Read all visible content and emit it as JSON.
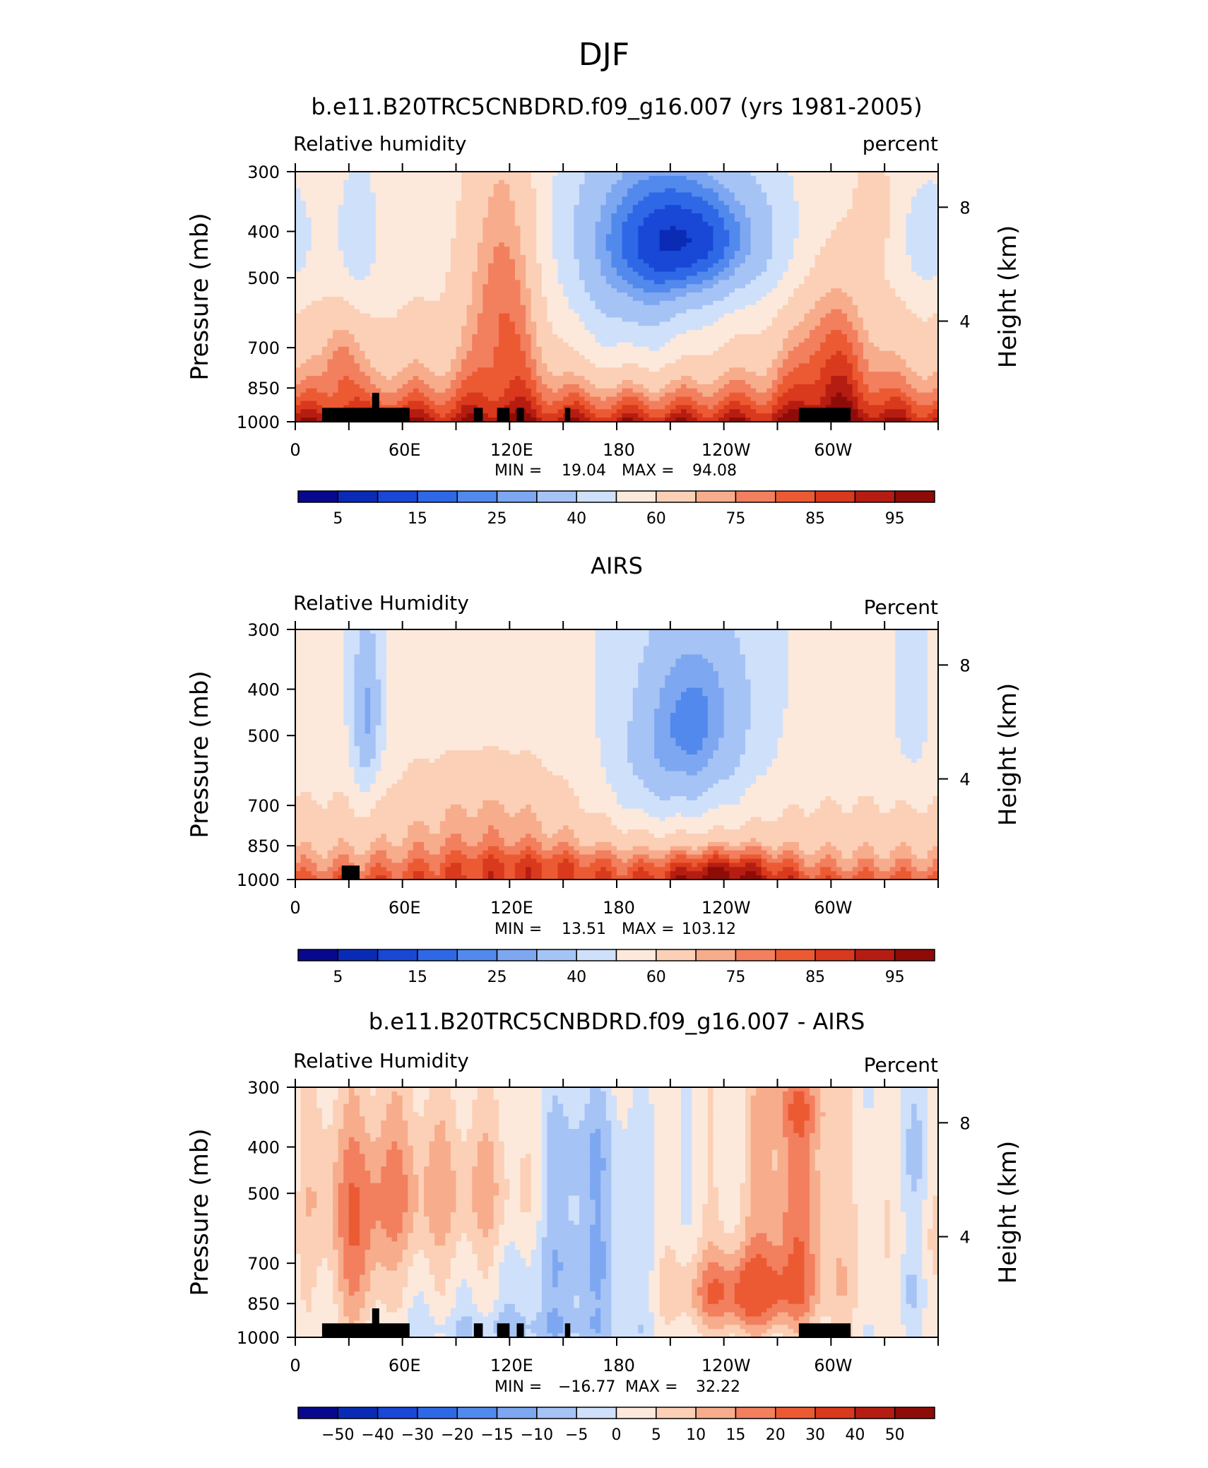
{
  "figure": {
    "title": "DJF"
  },
  "colors": {
    "rh_palette": [
      "#08088f",
      "#0a2bb5",
      "#1947d6",
      "#2e68e6",
      "#5289ec",
      "#7ea7f1",
      "#a6c3f5",
      "#cfe0fb",
      "#fce9dc",
      "#fbd0b6",
      "#f7ac8c",
      "#f27f5e",
      "#ec5a33",
      "#d9391c",
      "#b51d12",
      "#8e0c08"
    ],
    "land": "#000000"
  },
  "chart_data": [
    {
      "type": "heatmap",
      "panel_title": "b.e11.B20TRC5CNBDRD.f09_g16.007 (yrs 1981-2005)",
      "left_label": "Relative humidity",
      "right_label": "percent",
      "xlabel": "",
      "ylabel": "Pressure (mb)",
      "ylabel_right": "Height (km)",
      "x_ticks": [
        "0",
        "60E",
        "120E",
        "180",
        "120W",
        "60W"
      ],
      "y_ticks": [
        "300",
        "400",
        "500",
        "700",
        "850",
        "1000"
      ],
      "y_right_ticks": [
        "8",
        "4"
      ],
      "min_label": "MIN =",
      "min": "19.04",
      "max_label": "MAX =",
      "max": "94.08",
      "colorbar_labels": [
        "5",
        "15",
        "25",
        "40",
        "60",
        "75",
        "85",
        "95"
      ],
      "field": "model"
    },
    {
      "type": "heatmap",
      "panel_title": "AIRS",
      "left_label": "Relative Humidity",
      "right_label": "Percent",
      "xlabel": "",
      "ylabel": "Pressure (mb)",
      "ylabel_right": "Height (km)",
      "x_ticks": [
        "0",
        "60E",
        "120E",
        "180",
        "120W",
        "60W"
      ],
      "y_ticks": [
        "300",
        "400",
        "500",
        "700",
        "850",
        "1000"
      ],
      "y_right_ticks": [
        "8",
        "4"
      ],
      "min_label": "MIN =",
      "min": "13.51",
      "max_label": "MAX =",
      "max": "103.12",
      "colorbar_labels": [
        "5",
        "15",
        "25",
        "40",
        "60",
        "75",
        "85",
        "95"
      ],
      "field": "obs"
    },
    {
      "type": "heatmap",
      "panel_title": "b.e11.B20TRC5CNBDRD.f09_g16.007 - AIRS",
      "left_label": "Relative Humidity",
      "right_label": "Percent",
      "xlabel": "",
      "ylabel": "Pressure (mb)",
      "ylabel_right": "Height (km)",
      "x_ticks": [
        "0",
        "60E",
        "120E",
        "180",
        "120W",
        "60W"
      ],
      "y_ticks": [
        "300",
        "400",
        "500",
        "700",
        "850",
        "1000"
      ],
      "y_right_ticks": [
        "8",
        "4"
      ],
      "min_label": "MIN =",
      "min": "−16.77",
      "max_label": "MAX =",
      "max": "32.22",
      "colorbar_labels": [
        "−50",
        "−40",
        "−30",
        "−20",
        "−15",
        "−10",
        "−5",
        "0",
        "5",
        "10",
        "15",
        "20",
        "30",
        "40",
        "50"
      ],
      "field": "diff"
    }
  ]
}
